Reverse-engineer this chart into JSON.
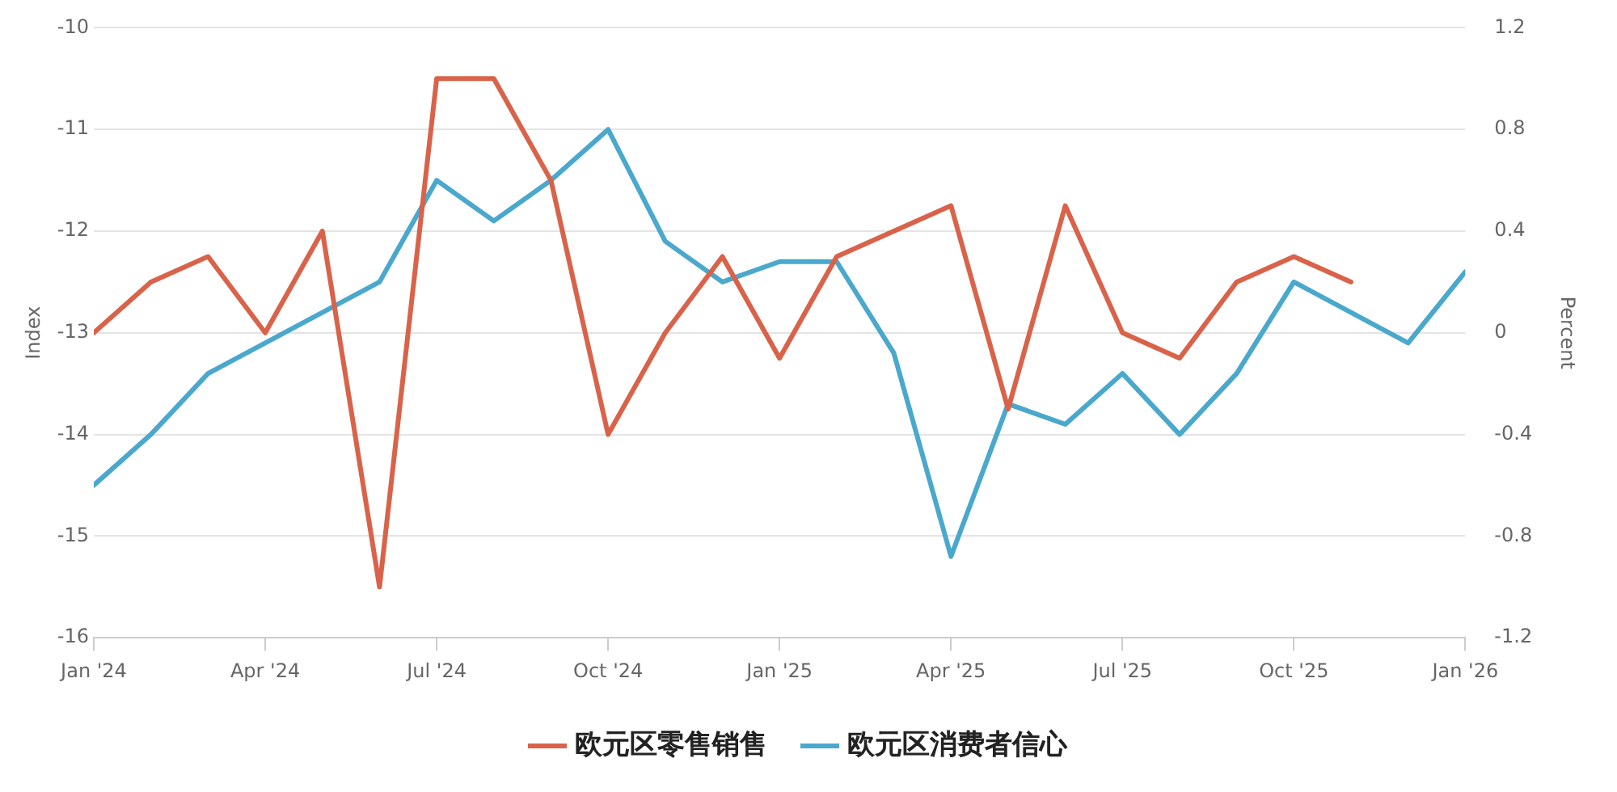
{
  "chart_data": {
    "type": "line",
    "x": [
      "2024-01",
      "2024-02",
      "2024-03",
      "2024-04",
      "2024-05",
      "2024-06",
      "2024-07",
      "2024-08",
      "2024-09",
      "2024-10",
      "2024-11",
      "2024-12",
      "2025-01",
      "2025-02",
      "2025-03",
      "2025-04",
      "2025-05",
      "2025-06",
      "2025-07",
      "2025-08",
      "2025-09",
      "2025-10",
      "2025-11",
      "2025-12",
      "2026-01"
    ],
    "series": [
      {
        "name": "欧元区零售销售",
        "color": "#d9634a",
        "axis": "y2",
        "values": [
          0.0,
          0.2,
          0.3,
          0.0,
          0.4,
          -1.0,
          1.0,
          1.0,
          0.6,
          -0.4,
          0.0,
          0.3,
          -0.1,
          0.3,
          0.4,
          0.5,
          -0.3,
          0.5,
          0.0,
          -0.1,
          0.2,
          0.3,
          0.2,
          null,
          null
        ]
      },
      {
        "name": "欧元区消费者信心",
        "color": "#4aa8cc",
        "axis": "y",
        "values": [
          -14.5,
          -14.0,
          -13.4,
          -13.1,
          -12.8,
          -12.5,
          -11.5,
          -11.9,
          -11.5,
          -11.0,
          -12.1,
          -12.5,
          -12.3,
          -12.3,
          -13.2,
          -15.2,
          -13.7,
          -13.9,
          -13.4,
          -14.0,
          -13.4,
          -12.5,
          -12.8,
          -13.1,
          -12.4
        ]
      }
    ],
    "xlim": [
      "2024-01",
      "2026-01"
    ],
    "xticks": [
      {
        "value": "2024-01",
        "label": "Jan '24"
      },
      {
        "value": "2024-04",
        "label": "Apr '24"
      },
      {
        "value": "2024-07",
        "label": "Jul '24"
      },
      {
        "value": "2024-10",
        "label": "Oct '24"
      },
      {
        "value": "2025-01",
        "label": "Jan '25"
      },
      {
        "value": "2025-04",
        "label": "Apr '25"
      },
      {
        "value": "2025-07",
        "label": "Jul '25"
      },
      {
        "value": "2025-10",
        "label": "Oct '25"
      },
      {
        "value": "2026-01",
        "label": "Jan '26"
      }
    ],
    "ylabel": "Index",
    "ylim": [
      -16,
      -10
    ],
    "yticks": [
      -16,
      -15,
      -14,
      -13,
      -12,
      -11,
      -10
    ],
    "y2label": "Percent",
    "y2lim": [
      -1.2,
      1.2
    ],
    "y2ticks": [
      -1.2,
      -0.8,
      -0.4,
      0,
      0.4,
      0.8,
      1.2
    ],
    "grid": "y",
    "legend": "bottom",
    "marker": "none",
    "line_style": "solid"
  }
}
